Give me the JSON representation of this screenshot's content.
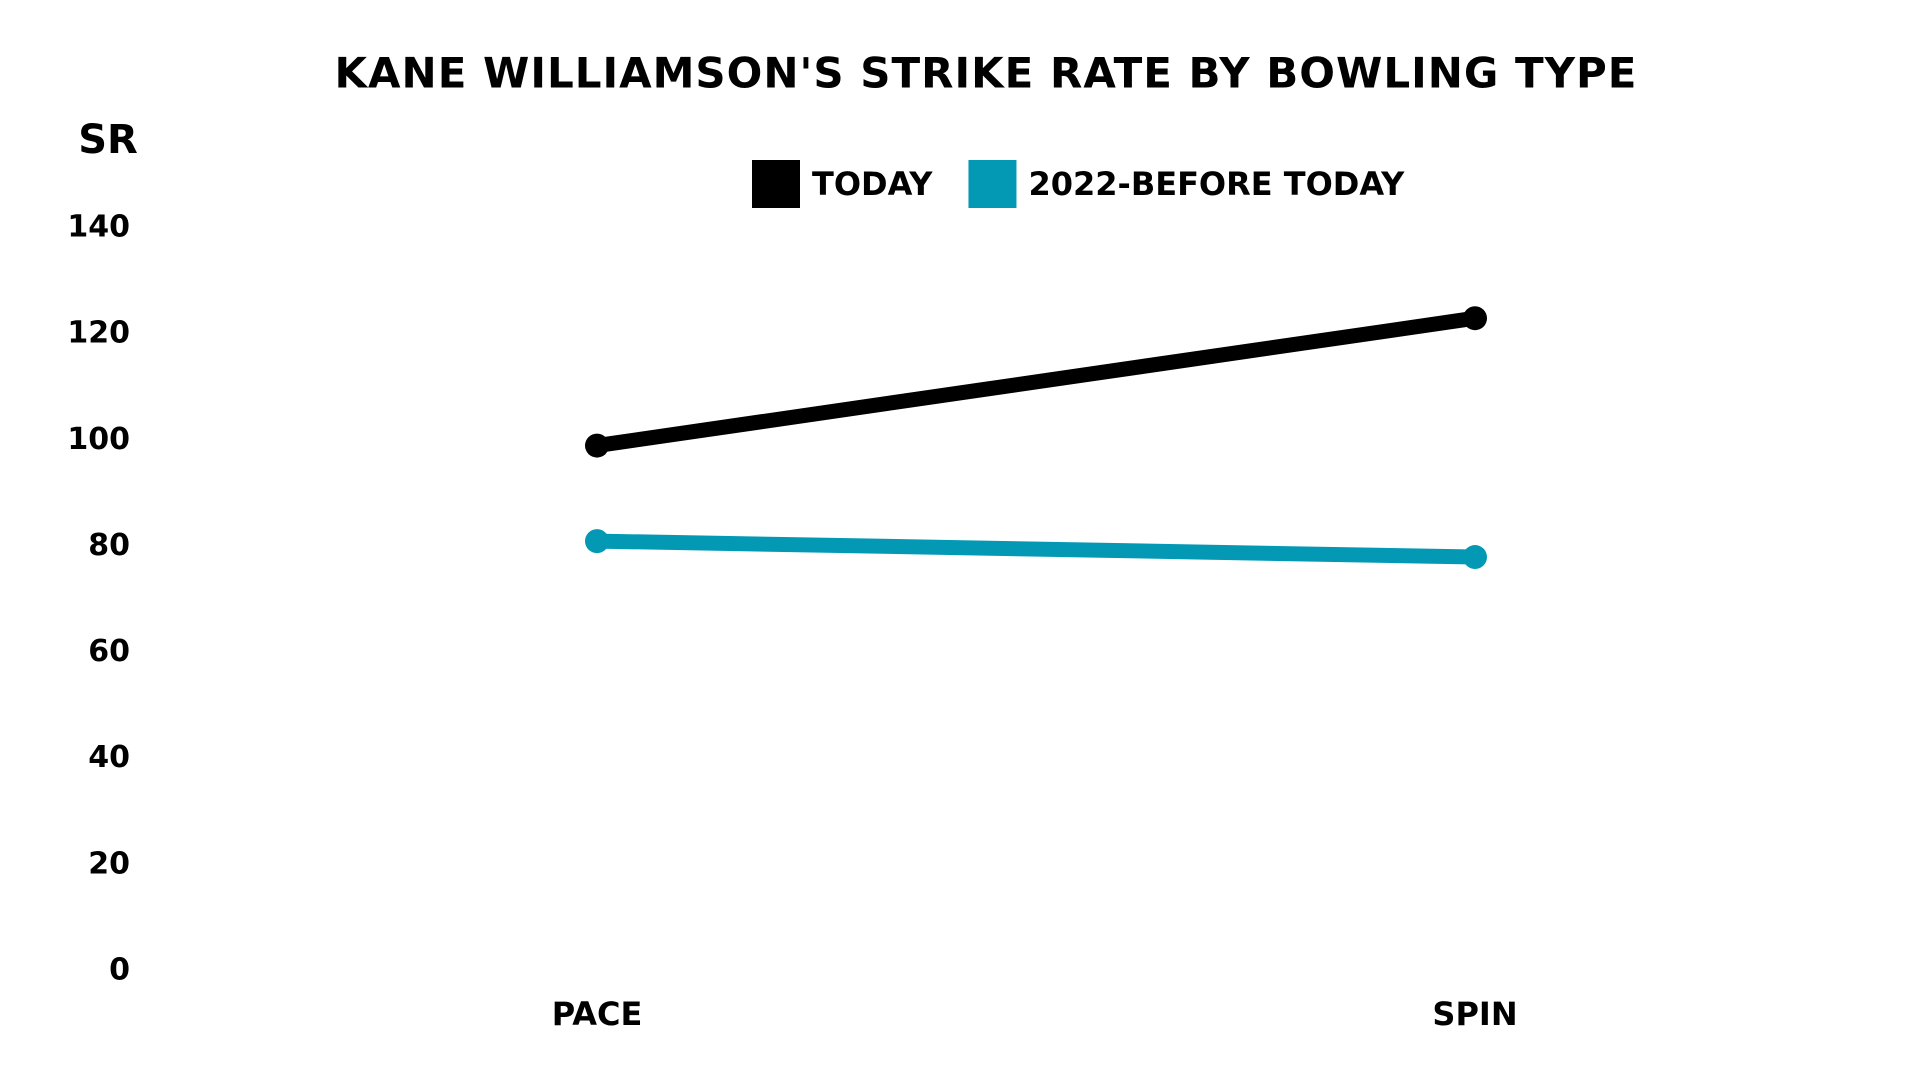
{
  "chart_data": {
    "type": "line",
    "title": "KANE WILLIAMSON'S STRIKE RATE BY BOWLING TYPE",
    "y_label": "SR",
    "categories": [
      "PACE",
      "SPIN"
    ],
    "series": [
      {
        "name": "TODAY",
        "color": "#000000",
        "values": [
          99,
          123
        ]
      },
      {
        "name": "2022-BEFORE TODAY",
        "color": "#0399b5",
        "values": [
          81,
          78
        ]
      }
    ],
    "ylim": [
      0,
      140
    ],
    "yticks": [
      0,
      20,
      40,
      60,
      80,
      100,
      120,
      140
    ],
    "grid": false,
    "legend": "top"
  }
}
